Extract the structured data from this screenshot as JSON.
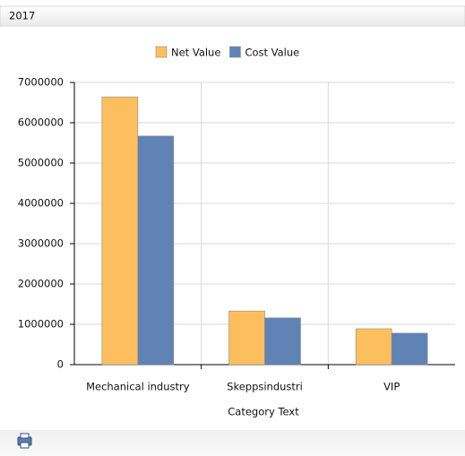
{
  "header": "2017",
  "chart_data": {
    "type": "bar",
    "x_label": "Category Text",
    "categories": [
      "Mechanical industry",
      "Skeppsindustri",
      "VIP"
    ],
    "series": [
      {
        "name": "Net Value",
        "color": "#fdbf5e",
        "values": [
          6640000,
          1330000,
          890000
        ]
      },
      {
        "name": "Cost Value",
        "color": "#6083b6",
        "values": [
          5670000,
          1160000,
          780000
        ]
      }
    ],
    "ylim": [
      0,
      7000000
    ],
    "yticks": [
      0,
      1000000,
      2000000,
      3000000,
      4000000,
      5000000,
      6000000,
      7000000
    ],
    "grid": true,
    "legend": "top"
  }
}
